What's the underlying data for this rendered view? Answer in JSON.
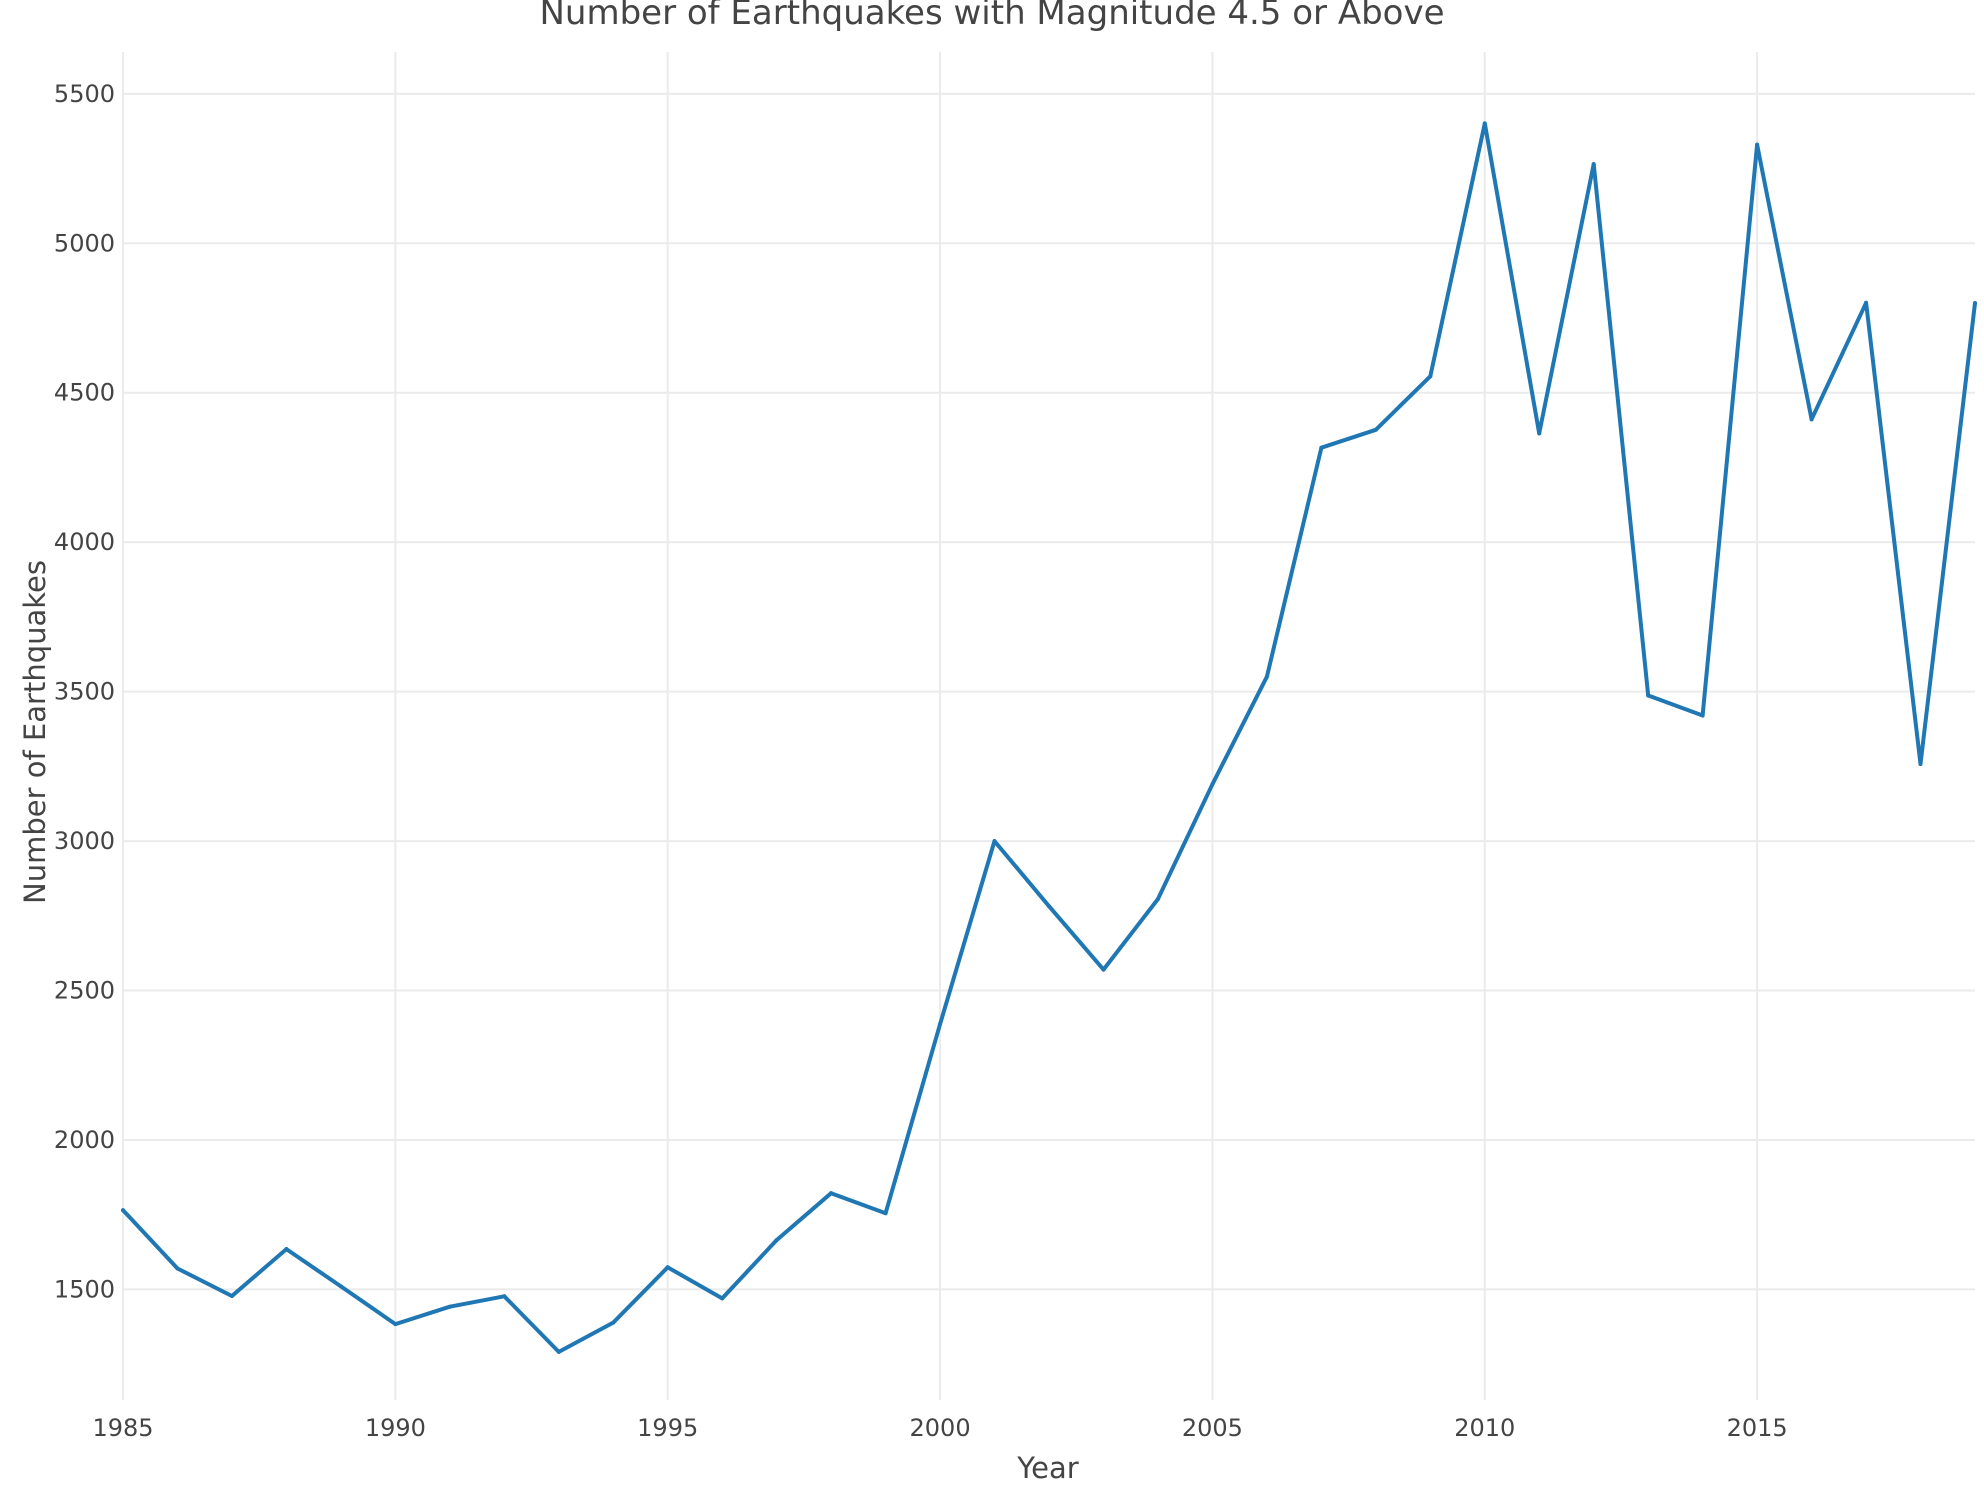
{
  "chart_data": {
    "type": "line",
    "title": "Number of Earthquakes with Magnitude 4.5 or Above",
    "xlabel": "Year",
    "ylabel": "Number of Earthquakes",
    "xlim": [
      1985,
      2019
    ],
    "ylim": [
      1130,
      5640
    ],
    "x_ticks": [
      1985,
      1990,
      1995,
      2000,
      2005,
      2010,
      2015
    ],
    "y_ticks": [
      1500,
      2000,
      2500,
      3000,
      3500,
      4000,
      4500,
      5000,
      5500
    ],
    "grid": true,
    "legend": "none",
    "series": [
      {
        "color": "#1f77b4",
        "x": [
          1985,
          1986,
          1987,
          1988,
          1989,
          1990,
          1991,
          1992,
          1993,
          1994,
          1995,
          1996,
          1997,
          1998,
          1999,
          2000,
          2001,
          2002,
          2003,
          2004,
          2005,
          2006,
          2007,
          2008,
          2009,
          2010,
          2011,
          2012,
          2013,
          2014,
          2015,
          2016,
          2017,
          2018,
          2019
        ],
        "values": [
          1765,
          1570,
          1478,
          1635,
          1510,
          1384,
          1442,
          1477,
          1291,
          1389,
          1574,
          1470,
          1665,
          1822,
          1755,
          2388,
          3000,
          2782,
          2570,
          2806,
          3190,
          3550,
          4316,
          4376,
          4555,
          5401,
          4364,
          5265,
          3487,
          3420,
          5330,
          4411,
          4801,
          3258,
          4800
        ]
      }
    ]
  }
}
